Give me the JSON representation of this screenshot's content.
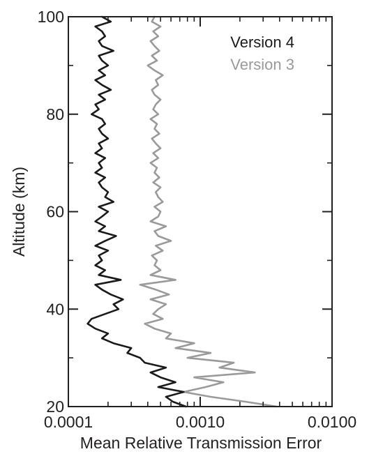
{
  "chart_data": {
    "type": "line",
    "xlabel": "Mean Relative Transmission Error",
    "ylabel": "Altitude (km)",
    "x_scale": "log",
    "xlim": [
      0.0001,
      0.01
    ],
    "ylim": [
      20,
      100
    ],
    "x_ticks": [
      {
        "value": 0.0001,
        "label": "0.0001"
      },
      {
        "value": 0.001,
        "label": "0.0010"
      },
      {
        "value": 0.01,
        "label": "0.0100"
      }
    ],
    "y_ticks": [
      {
        "value": 20,
        "label": "20"
      },
      {
        "value": 40,
        "label": "40"
      },
      {
        "value": 60,
        "label": "60"
      },
      {
        "value": 80,
        "label": "80"
      },
      {
        "value": 100,
        "label": "100"
      }
    ],
    "grid": false,
    "legend": "top-right",
    "series": [
      {
        "name": "Version 4",
        "color": "#1a1a1a",
        "points": [
          [
            0.00078,
            20
          ],
          [
            0.00062,
            21
          ],
          [
            0.00055,
            22
          ],
          [
            0.00075,
            23
          ],
          [
            0.00048,
            24
          ],
          [
            0.00065,
            25
          ],
          [
            0.0005,
            26
          ],
          [
            0.00042,
            27
          ],
          [
            0.00055,
            28
          ],
          [
            0.00038,
            29
          ],
          [
            0.00035,
            30
          ],
          [
            0.00028,
            31
          ],
          [
            0.0003,
            32
          ],
          [
            0.00022,
            33
          ],
          [
            0.00018,
            34
          ],
          [
            0.0002,
            35
          ],
          [
            0.00016,
            36
          ],
          [
            0.00014,
            37
          ],
          [
            0.00015,
            38
          ],
          [
            0.00019,
            39
          ],
          [
            0.00024,
            40
          ],
          [
            0.00022,
            41
          ],
          [
            0.00026,
            42
          ],
          [
            0.00021,
            43
          ],
          [
            0.00018,
            44
          ],
          [
            0.00016,
            45
          ],
          [
            0.00025,
            46
          ],
          [
            0.00017,
            47
          ],
          [
            0.00019,
            48
          ],
          [
            0.00016,
            49
          ],
          [
            0.00018,
            50
          ],
          [
            0.00017,
            51
          ],
          [
            0.0002,
            52
          ],
          [
            0.00016,
            53
          ],
          [
            0.00019,
            54
          ],
          [
            0.00023,
            55
          ],
          [
            0.00017,
            56
          ],
          [
            0.00019,
            57
          ],
          [
            0.00016,
            58
          ],
          [
            0.00018,
            59
          ],
          [
            0.0002,
            60
          ],
          [
            0.00017,
            61
          ],
          [
            0.00022,
            62
          ],
          [
            0.00019,
            63
          ],
          [
            0.0002,
            64
          ],
          [
            0.00018,
            65
          ],
          [
            0.00017,
            66
          ],
          [
            0.00019,
            67
          ],
          [
            0.00016,
            68
          ],
          [
            0.00018,
            69
          ],
          [
            0.00017,
            70
          ],
          [
            0.00019,
            71
          ],
          [
            0.00016,
            72
          ],
          [
            0.00018,
            73
          ],
          [
            0.00017,
            74
          ],
          [
            0.0002,
            75
          ],
          [
            0.00018,
            76
          ],
          [
            0.00017,
            77
          ],
          [
            0.00019,
            78
          ],
          [
            0.00018,
            79
          ],
          [
            0.00015,
            80
          ],
          [
            0.00017,
            81
          ],
          [
            0.00016,
            82
          ],
          [
            0.00019,
            83
          ],
          [
            0.00017,
            84
          ],
          [
            0.00021,
            85
          ],
          [
            0.00018,
            86
          ],
          [
            0.00016,
            87
          ],
          [
            0.00019,
            88
          ],
          [
            0.00017,
            89
          ],
          [
            0.0002,
            90
          ],
          [
            0.00018,
            91
          ],
          [
            0.00017,
            92
          ],
          [
            0.00022,
            93
          ],
          [
            0.00018,
            94
          ],
          [
            0.00017,
            95
          ],
          [
            0.00019,
            96
          ],
          [
            0.00018,
            97
          ],
          [
            0.00016,
            98
          ],
          [
            0.00021,
            99
          ],
          [
            0.00018,
            100
          ]
        ]
      },
      {
        "name": "Version 3",
        "color": "#9a9a9a",
        "points": [
          [
            0.0038,
            20
          ],
          [
            0.0022,
            21
          ],
          [
            0.0012,
            22
          ],
          [
            0.00075,
            23
          ],
          [
            0.0011,
            24
          ],
          [
            0.0015,
            25
          ],
          [
            0.0009,
            26
          ],
          [
            0.0026,
            27
          ],
          [
            0.0014,
            28
          ],
          [
            0.0018,
            29
          ],
          [
            0.0008,
            30
          ],
          [
            0.0012,
            31
          ],
          [
            0.00065,
            32
          ],
          [
            0.0009,
            33
          ],
          [
            0.00055,
            34
          ],
          [
            0.0006,
            35
          ],
          [
            0.00045,
            36
          ],
          [
            0.00038,
            37
          ],
          [
            0.00052,
            38
          ],
          [
            0.00044,
            39
          ],
          [
            0.00048,
            40
          ],
          [
            0.00055,
            41
          ],
          [
            0.00042,
            42
          ],
          [
            0.00058,
            43
          ],
          [
            0.00046,
            44
          ],
          [
            0.00035,
            45
          ],
          [
            0.00065,
            46
          ],
          [
            0.00042,
            47
          ],
          [
            0.0005,
            48
          ],
          [
            0.00045,
            49
          ],
          [
            0.00047,
            50
          ],
          [
            0.00043,
            51
          ],
          [
            0.00052,
            52
          ],
          [
            0.00046,
            53
          ],
          [
            0.0006,
            54
          ],
          [
            0.00048,
            55
          ],
          [
            0.00045,
            56
          ],
          [
            0.00055,
            57
          ],
          [
            0.00042,
            58
          ],
          [
            0.00048,
            59
          ],
          [
            0.0005,
            60
          ],
          [
            0.00045,
            61
          ],
          [
            0.00052,
            62
          ],
          [
            0.00048,
            63
          ],
          [
            0.00046,
            64
          ],
          [
            0.0005,
            65
          ],
          [
            0.00044,
            66
          ],
          [
            0.00049,
            67
          ],
          [
            0.00045,
            68
          ],
          [
            0.00047,
            69
          ],
          [
            0.00042,
            70
          ],
          [
            0.00048,
            71
          ],
          [
            0.00044,
            72
          ],
          [
            0.0005,
            73
          ],
          [
            0.00046,
            74
          ],
          [
            0.00043,
            75
          ],
          [
            0.00049,
            76
          ],
          [
            0.00045,
            77
          ],
          [
            0.00047,
            78
          ],
          [
            0.00042,
            79
          ],
          [
            0.00048,
            80
          ],
          [
            0.00044,
            81
          ],
          [
            0.00046,
            82
          ],
          [
            0.0005,
            83
          ],
          [
            0.00045,
            84
          ],
          [
            0.00043,
            85
          ],
          [
            0.00048,
            86
          ],
          [
            0.00046,
            87
          ],
          [
            0.00052,
            88
          ],
          [
            0.00045,
            89
          ],
          [
            0.0004,
            90
          ],
          [
            0.00047,
            91
          ],
          [
            0.00043,
            92
          ],
          [
            0.00049,
            93
          ],
          [
            0.00045,
            94
          ],
          [
            0.00042,
            95
          ],
          [
            0.00048,
            96
          ],
          [
            0.00044,
            97
          ],
          [
            0.0005,
            98
          ],
          [
            0.00043,
            99
          ],
          [
            0.00045,
            100
          ]
        ]
      }
    ]
  }
}
